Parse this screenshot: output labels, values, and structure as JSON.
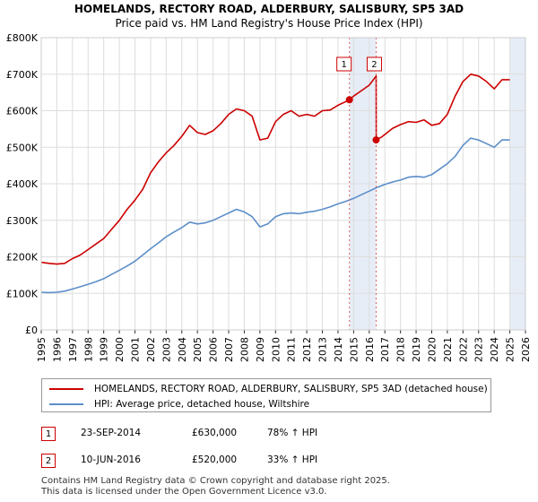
{
  "chart_data": {
    "type": "line",
    "title": "HOMELANDS, RECTORY ROAD, ALDERBURY, SALISBURY, SP5 3AD",
    "subtitle": "Price paid vs. HM Land Registry's House Price Index (HPI)",
    "xlabel": "",
    "ylabel": "",
    "xlim": [
      1995,
      2026
    ],
    "ylim": [
      0,
      800000
    ],
    "y_ticks": [
      {
        "value": 0,
        "label": "£0"
      },
      {
        "value": 100000,
        "label": "£100K"
      },
      {
        "value": 200000,
        "label": "£200K"
      },
      {
        "value": 300000,
        "label": "£300K"
      },
      {
        "value": 400000,
        "label": "£400K"
      },
      {
        "value": 500000,
        "label": "£500K"
      },
      {
        "value": 600000,
        "label": "£600K"
      },
      {
        "value": 700000,
        "label": "£700K"
      },
      {
        "value": 800000,
        "label": "£800K"
      }
    ],
    "x_ticks": [
      "1995",
      "1996",
      "1997",
      "1998",
      "1999",
      "2000",
      "2001",
      "2002",
      "2003",
      "2004",
      "2005",
      "2006",
      "2007",
      "2008",
      "2009",
      "2010",
      "2011",
      "2012",
      "2013",
      "2014",
      "2015",
      "2016",
      "2017",
      "2018",
      "2019",
      "2020",
      "2021",
      "2022",
      "2023",
      "2024",
      "2025",
      "2026"
    ],
    "grid": true,
    "shaded_ranges": [
      [
        2014.73,
        2016.44
      ],
      [
        2025.0,
        2026.0
      ]
    ],
    "series": [
      {
        "name": "HOMELANDS, RECTORY ROAD, ALDERBURY, SALISBURY, SP5 3AD (detached house)",
        "color": "#cc0000",
        "x": [
          1995.0,
          1995.5,
          1996.0,
          1996.5,
          1997.0,
          1997.5,
          1998.0,
          1998.5,
          1999.0,
          1999.5,
          2000.0,
          2000.5,
          2001.0,
          2001.5,
          2002.0,
          2002.5,
          2003.0,
          2003.5,
          2004.0,
          2004.5,
          2005.0,
          2005.5,
          2006.0,
          2006.5,
          2007.0,
          2007.5,
          2008.0,
          2008.5,
          2009.0,
          2009.5,
          2010.0,
          2010.5,
          2011.0,
          2011.5,
          2012.0,
          2012.5,
          2013.0,
          2013.5,
          2014.0,
          2014.5,
          2014.73,
          2015.0,
          2015.5,
          2016.0,
          2016.44,
          2016.45,
          2016.8,
          2017.0,
          2017.5,
          2018.0,
          2018.5,
          2019.0,
          2019.5,
          2020.0,
          2020.5,
          2021.0,
          2021.5,
          2022.0,
          2022.5,
          2023.0,
          2023.5,
          2024.0,
          2024.5,
          2025.0
        ],
        "values": [
          185000,
          182000,
          180000,
          182000,
          195000,
          205000,
          220000,
          235000,
          250000,
          275000,
          300000,
          330000,
          355000,
          385000,
          430000,
          460000,
          485000,
          505000,
          530000,
          560000,
          540000,
          535000,
          545000,
          565000,
          590000,
          605000,
          600000,
          585000,
          520000,
          525000,
          570000,
          590000,
          600000,
          585000,
          590000,
          585000,
          600000,
          602000,
          615000,
          625000,
          630000,
          640000,
          655000,
          670000,
          695000,
          520000,
          528000,
          535000,
          552000,
          562000,
          570000,
          568000,
          575000,
          560000,
          565000,
          590000,
          640000,
          680000,
          700000,
          695000,
          680000,
          660000,
          685000,
          685000
        ]
      },
      {
        "name": "HPI: Average price, detached house, Wiltshire",
        "color": "#5b8ec9",
        "x": [
          1995.0,
          1995.5,
          1996.0,
          1996.5,
          1997.0,
          1997.5,
          1998.0,
          1998.5,
          1999.0,
          1999.5,
          2000.0,
          2000.5,
          2001.0,
          2001.5,
          2002.0,
          2002.5,
          2003.0,
          2003.5,
          2004.0,
          2004.5,
          2005.0,
          2005.5,
          2006.0,
          2006.5,
          2007.0,
          2007.5,
          2008.0,
          2008.5,
          2009.0,
          2009.5,
          2010.0,
          2010.5,
          2011.0,
          2011.5,
          2012.0,
          2012.5,
          2013.0,
          2013.5,
          2014.0,
          2014.5,
          2015.0,
          2015.5,
          2016.0,
          2016.5,
          2017.0,
          2017.5,
          2018.0,
          2018.5,
          2019.0,
          2019.5,
          2020.0,
          2020.5,
          2021.0,
          2021.5,
          2022.0,
          2022.5,
          2023.0,
          2023.5,
          2024.0,
          2024.5,
          2025.0
        ],
        "values": [
          103000,
          102000,
          103000,
          106000,
          112000,
          118000,
          125000,
          132000,
          140000,
          152000,
          163000,
          175000,
          188000,
          205000,
          222000,
          238000,
          255000,
          268000,
          280000,
          295000,
          290000,
          293000,
          300000,
          310000,
          320000,
          330000,
          323000,
          310000,
          282000,
          290000,
          310000,
          318000,
          320000,
          318000,
          322000,
          325000,
          330000,
          337000,
          345000,
          352000,
          360000,
          370000,
          380000,
          390000,
          398000,
          405000,
          410000,
          418000,
          420000,
          418000,
          425000,
          440000,
          455000,
          475000,
          505000,
          525000,
          520000,
          510000,
          500000,
          520000,
          520000
        ]
      }
    ],
    "sales": [
      {
        "marker": "1",
        "x": 2014.73,
        "value": 630000
      },
      {
        "marker": "2",
        "x": 2016.44,
        "value": 520000
      }
    ]
  },
  "legend": {
    "property_label": "HOMELANDS, RECTORY ROAD, ALDERBURY, SALISBURY, SP5 3AD (detached house)",
    "hpi_label": "HPI: Average price, detached house, Wiltshire"
  },
  "transactions": [
    {
      "marker": "1",
      "date": "23-SEP-2014",
      "price": "£630,000",
      "hpi_change": "78% ↑ HPI"
    },
    {
      "marker": "2",
      "date": "10-JUN-2016",
      "price": "£520,000",
      "hpi_change": "33% ↑ HPI"
    }
  ],
  "footer": {
    "line1": "Contains HM Land Registry data © Crown copyright and database right 2025.",
    "line2": "This data is licensed under the Open Government Licence v3.0."
  },
  "colors": {
    "property": "#cc0000",
    "hpi": "#5b8ec9",
    "grid": "#dddddd",
    "shade": "#dde6f3"
  }
}
